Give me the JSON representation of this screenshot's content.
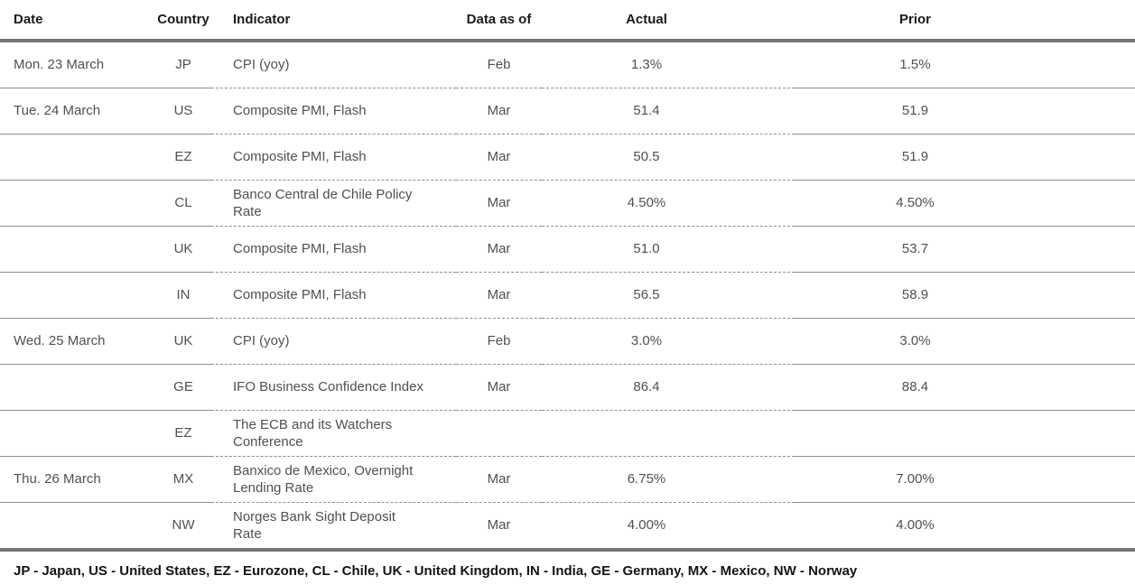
{
  "table": {
    "columns": [
      {
        "key": "date",
        "label": "Date"
      },
      {
        "key": "country",
        "label": "Country"
      },
      {
        "key": "indicator",
        "label": "Indicator"
      },
      {
        "key": "data_as_of",
        "label": "Data as of"
      },
      {
        "key": "actual",
        "label": "Actual"
      },
      {
        "key": "prior",
        "label": "Prior"
      }
    ],
    "rows": [
      {
        "date": "Mon. 23 March",
        "country": "JP",
        "indicator": "CPI (yoy)",
        "data_as_of": "Feb",
        "actual": "1.3%",
        "prior": "1.5%"
      },
      {
        "date": "Tue. 24 March",
        "country": "US",
        "indicator": "Composite PMI, Flash",
        "data_as_of": "Mar",
        "actual": "51.4",
        "prior": "51.9"
      },
      {
        "date": "",
        "country": "EZ",
        "indicator": "Composite PMI, Flash",
        "data_as_of": "Mar",
        "actual": "50.5",
        "prior": "51.9"
      },
      {
        "date": "",
        "country": "CL",
        "indicator": "Banco Central de Chile Policy\nRate",
        "data_as_of": "Mar",
        "actual": "4.50%",
        "prior": "4.50%"
      },
      {
        "date": "",
        "country": "UK",
        "indicator": "Composite PMI, Flash",
        "data_as_of": "Mar",
        "actual": "51.0",
        "prior": "53.7"
      },
      {
        "date": "",
        "country": "IN",
        "indicator": "Composite PMI, Flash",
        "data_as_of": "Mar",
        "actual": "56.5",
        "prior": "58.9"
      },
      {
        "date": "Wed. 25 March",
        "country": "UK",
        "indicator": "CPI (yoy)",
        "data_as_of": "Feb",
        "actual": "3.0%",
        "prior": "3.0%"
      },
      {
        "date": "",
        "country": "GE",
        "indicator": "IFO Business Confidence Index",
        "data_as_of": "Mar",
        "actual": "86.4",
        "prior": "88.4"
      },
      {
        "date": "",
        "country": "EZ",
        "indicator": "The ECB and its Watchers\nConference",
        "data_as_of": "",
        "actual": "",
        "prior": ""
      },
      {
        "date": "Thu. 26 March",
        "country": "MX",
        "indicator": "Banxico de Mexico, Overnight\nLending Rate",
        "data_as_of": "Mar",
        "actual": "6.75%",
        "prior": "7.00%"
      },
      {
        "date": "",
        "country": "NW",
        "indicator": "Norges Bank Sight Deposit\nRate",
        "data_as_of": "Mar",
        "actual": "4.00%",
        "prior": "4.00%"
      }
    ],
    "footnote": "JP - Japan, US - United States, EZ - Eurozone, CL - Chile, UK - United Kingdom, IN - India, GE - Germany, MX - Mexico, NW - Norway"
  },
  "colors": {
    "thick_rule": "#757577",
    "thin_rule": "#8e8e8e",
    "header_text": "#1a1a1a",
    "body_text": "#505052",
    "background": "#ffffff"
  }
}
